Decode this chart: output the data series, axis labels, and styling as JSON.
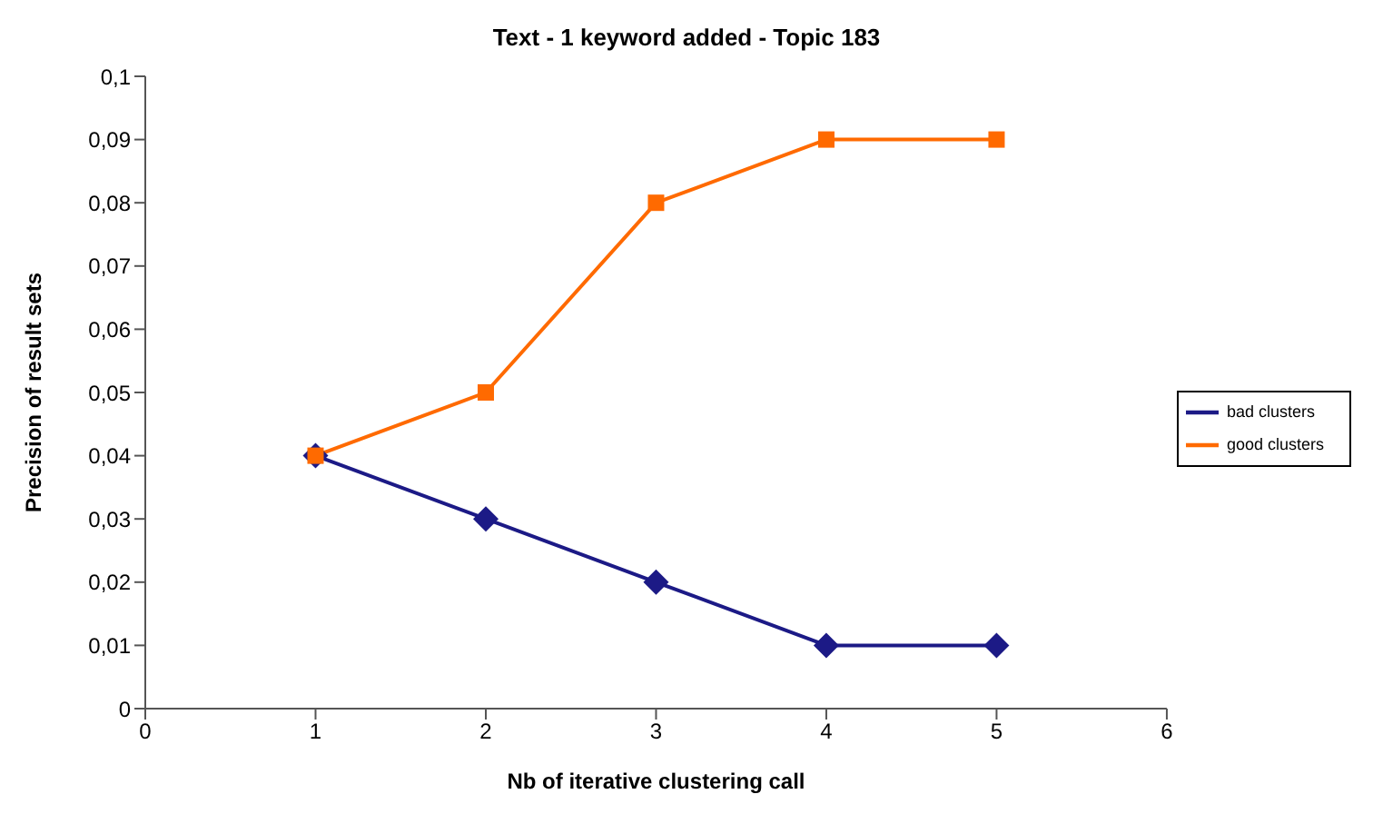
{
  "chart_data": {
    "type": "line",
    "title": "Text - 1 keyword added - Topic 183",
    "xlabel": "Nb of iterative clustering call",
    "ylabel": "Precision of result sets",
    "x": [
      1,
      2,
      3,
      4,
      5
    ],
    "series": [
      {
        "name": "bad clusters",
        "color": "#1c1a86",
        "values": [
          0.04,
          0.03,
          0.02,
          0.01,
          0.01
        ],
        "marker": "diamond"
      },
      {
        "name": "good clusters",
        "color": "#ff6a00",
        "values": [
          0.04,
          0.05,
          0.08,
          0.09,
          0.09
        ],
        "marker": "square"
      }
    ],
    "xlim": [
      0,
      6
    ],
    "xticks": [
      0,
      1,
      2,
      3,
      4,
      5,
      6
    ],
    "ylim": [
      0,
      0.1
    ],
    "yticks": [
      {
        "value": 0,
        "label": "0"
      },
      {
        "value": 0.01,
        "label": "0,01"
      },
      {
        "value": 0.02,
        "label": "0,02"
      },
      {
        "value": 0.03,
        "label": "0,03"
      },
      {
        "value": 0.04,
        "label": "0,04"
      },
      {
        "value": 0.05,
        "label": "0,05"
      },
      {
        "value": 0.06,
        "label": "0,06"
      },
      {
        "value": 0.07,
        "label": "0,07"
      },
      {
        "value": 0.08,
        "label": "0,08"
      },
      {
        "value": 0.09,
        "label": "0,09"
      },
      {
        "value": 0.1,
        "label": "0,1"
      }
    ],
    "grid": false,
    "legend": "right",
    "line_style": "solid"
  }
}
